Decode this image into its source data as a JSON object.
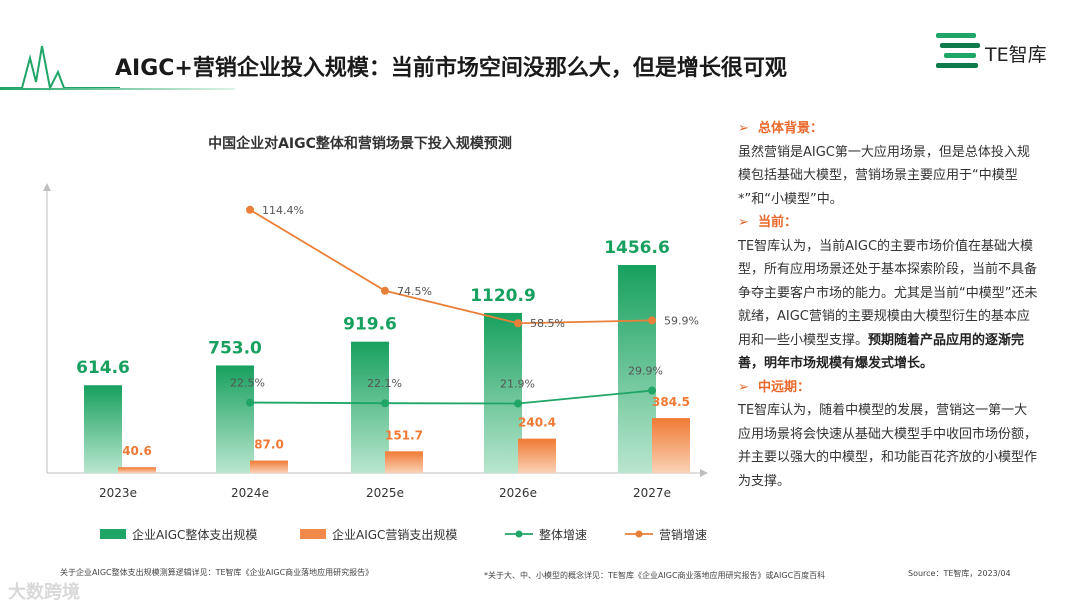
{
  "header": {
    "title": "AIGC+营销企业投入规模：当前市场空间没那么大，但是增长很可观",
    "logo_text": "TE智库"
  },
  "chart_data": {
    "type": "bar+line",
    "title": "中国企业对AIGC整体和营销场景下投入规模预测",
    "categories": [
      "2023e",
      "2024e",
      "2025e",
      "2026e",
      "2027e"
    ],
    "bar_series": [
      {
        "name": "企业AIGC整体支出规模",
        "values": [
          614.6,
          753.0,
          919.6,
          1120.9,
          1456.6
        ],
        "labels": [
          "614.6",
          "753.0",
          "919.6",
          "1120.9",
          "1456.6"
        ],
        "color": "#1FA566"
      },
      {
        "name": "企业AIGC营销支出规模",
        "values": [
          40.6,
          87.0,
          151.7,
          240.4,
          384.5
        ],
        "labels": [
          "40.6",
          "87.0",
          "151.7",
          "240.4",
          "384.5"
        ],
        "color": "#F08A4B"
      }
    ],
    "line_series": [
      {
        "name": "整体增速",
        "x": [
          "2024e",
          "2025e",
          "2026e",
          "2027e"
        ],
        "values": [
          22.5,
          22.1,
          21.9,
          29.9
        ],
        "labels": [
          "22.5%",
          "22.1%",
          "21.9%",
          "29.9%"
        ],
        "color": "#1FA566"
      },
      {
        "name": "营销增速",
        "x": [
          "2024e",
          "2025e",
          "2026e",
          "2027e"
        ],
        "values": [
          114.4,
          74.5,
          58.5,
          59.9
        ],
        "labels": [
          "114.4%",
          "74.5%",
          "58.5%",
          "59.9%"
        ],
        "color": "#E9803A"
      }
    ],
    "legend_position": "bottom"
  },
  "sidebar": {
    "sections": [
      {
        "heading": "总体背景：",
        "text": "虽然营销是AIGC第一大应用场景，但是总体投入规模包括基础大模型，营销场景主要应用于“中模型*”和“小模型”中。",
        "bold": ""
      },
      {
        "heading": "当前：",
        "text": "TE智库认为，当前AIGC的主要市场价值在基础大模型，所有应用场景还处于基本探索阶段，当前不具备争夺主要客户市场的能力。尤其是当前“中模型”还未就绪，AIGC营销的主要规模由大模型衍生的基本应用和一些小模型支撑。",
        "bold": "预期随着产品应用的逐渐完善，明年市场规模有爆发式增长。"
      },
      {
        "heading": "中远期：",
        "text": "TE智库认为，随着中模型的发展，营销这一第一大应用场景将会快速从基础大模型手中收回市场份额，并主要以强大的中模型，和功能百花齐放的小模型作为支撑。",
        "bold": ""
      }
    ]
  },
  "footer": {
    "note_left": "关于企业AIGC整体支出规模测算逻辑详见：TE智库《企业AIGC商业落地应用研究报告》",
    "note_mid": "*关于大、中、小模型的概念详见：TE智库《企业AIGC商业落地应用研究报告》或AIGC百度百科",
    "source": "Source：TE智库，2023/04",
    "watermark": "大数跨境"
  }
}
